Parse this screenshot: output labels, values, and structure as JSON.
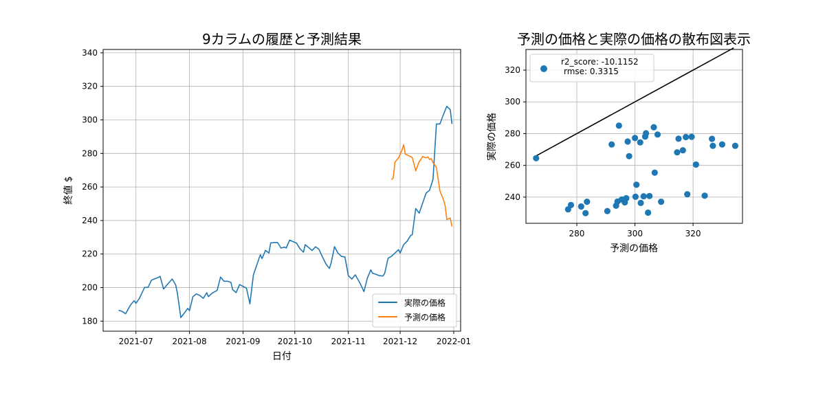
{
  "chart_data": [
    {
      "type": "line",
      "title": "9カラムの履歴と予測結果",
      "xlabel": "日付",
      "ylabel": "終値 $",
      "ylim": [
        174,
        342
      ],
      "xlim": [
        "2021-06-12",
        "2022-01-05"
      ],
      "grid": true,
      "legend_position": "lower-right",
      "x_ticks": [
        "2021-07",
        "2021-08",
        "2021-09",
        "2021-10",
        "2021-11",
        "2021-12",
        "2022-01"
      ],
      "x_tick_dates": [
        "2021-07-01",
        "2021-08-01",
        "2021-09-01",
        "2021-10-01",
        "2021-11-01",
        "2021-12-01",
        "2022-01-01"
      ],
      "y_ticks": [
        180,
        200,
        220,
        240,
        260,
        280,
        300,
        320,
        340
      ],
      "series": [
        {
          "name": "実際の価格",
          "color": "#1f77b4",
          "points": [
            [
              "2021-06-21",
              186.5
            ],
            [
              "2021-06-23",
              185.8
            ],
            [
              "2021-06-25",
              184.4
            ],
            [
              "2021-06-28",
              189.8
            ],
            [
              "2021-06-30",
              192.2
            ],
            [
              "2021-07-01",
              190.6
            ],
            [
              "2021-07-03",
              193.6
            ],
            [
              "2021-07-05",
              197.9
            ],
            [
              "2021-07-06",
              200.1
            ],
            [
              "2021-07-08",
              200.1
            ],
            [
              "2021-07-10",
              204.4
            ],
            [
              "2021-07-12",
              205.3
            ],
            [
              "2021-07-14",
              206.1
            ],
            [
              "2021-07-15",
              206.7
            ],
            [
              "2021-07-17",
              199.1
            ],
            [
              "2021-07-19",
              201.6
            ],
            [
              "2021-07-22",
              205.1
            ],
            [
              "2021-07-24",
              201.6
            ],
            [
              "2021-07-25",
              196.7
            ],
            [
              "2021-07-27",
              182.1
            ],
            [
              "2021-07-29",
              184.8
            ],
            [
              "2021-07-31",
              187.6
            ],
            [
              "2021-08-01",
              186.2
            ],
            [
              "2021-08-03",
              194.6
            ],
            [
              "2021-08-05",
              196.2
            ],
            [
              "2021-08-07",
              195.3
            ],
            [
              "2021-08-09",
              193.6
            ],
            [
              "2021-08-11",
              196.9
            ],
            [
              "2021-08-12",
              194.6
            ],
            [
              "2021-08-14",
              196.6
            ],
            [
              "2021-08-17",
              198.3
            ],
            [
              "2021-08-19",
              206.3
            ],
            [
              "2021-08-21",
              203.8
            ],
            [
              "2021-08-23",
              203.8
            ],
            [
              "2021-08-25",
              203.1
            ],
            [
              "2021-08-26",
              198.8
            ],
            [
              "2021-08-28",
              197.0
            ],
            [
              "2021-08-30",
              201.8
            ],
            [
              "2021-09-01",
              200.7
            ],
            [
              "2021-09-03",
              199.6
            ],
            [
              "2021-09-05",
              190.3
            ],
            [
              "2021-09-07",
              207.6
            ],
            [
              "2021-09-09",
              213.6
            ],
            [
              "2021-09-11",
              219.6
            ],
            [
              "2021-09-12",
              217.3
            ],
            [
              "2021-09-14",
              222.2
            ],
            [
              "2021-09-16",
              220.6
            ],
            [
              "2021-09-17",
              226.6
            ],
            [
              "2021-09-19",
              226.8
            ],
            [
              "2021-09-21",
              226.9
            ],
            [
              "2021-09-23",
              223.6
            ],
            [
              "2021-09-25",
              224.1
            ],
            [
              "2021-09-26",
              223.6
            ],
            [
              "2021-09-28",
              228.3
            ],
            [
              "2021-09-30",
              227.4
            ],
            [
              "2021-10-02",
              226.5
            ],
            [
              "2021-10-04",
              223.1
            ],
            [
              "2021-10-06",
              221.1
            ],
            [
              "2021-10-07",
              225.6
            ],
            [
              "2021-10-09",
              223.9
            ],
            [
              "2021-10-11",
              222.1
            ],
            [
              "2021-10-13",
              224.3
            ],
            [
              "2021-10-15",
              222.8
            ],
            [
              "2021-10-17",
              218.3
            ],
            [
              "2021-10-19",
              214.1
            ],
            [
              "2021-10-21",
              211.4
            ],
            [
              "2021-10-22",
              214.6
            ],
            [
              "2021-10-24",
              224.4
            ],
            [
              "2021-10-26",
              220.6
            ],
            [
              "2021-10-28",
              218.6
            ],
            [
              "2021-10-30",
              218.3
            ],
            [
              "2021-11-01",
              207.1
            ],
            [
              "2021-11-03",
              205.1
            ],
            [
              "2021-11-05",
              207.6
            ],
            [
              "2021-11-08",
              202.1
            ],
            [
              "2021-11-10",
              197.6
            ],
            [
              "2021-11-12",
              205.6
            ],
            [
              "2021-11-14",
              210.6
            ],
            [
              "2021-11-15",
              208.6
            ],
            [
              "2021-11-17",
              207.9
            ],
            [
              "2021-11-19",
              207.1
            ],
            [
              "2021-11-21",
              206.9
            ],
            [
              "2021-11-22",
              208.4
            ],
            [
              "2021-11-24",
              217.5
            ],
            [
              "2021-11-26",
              218.7
            ],
            [
              "2021-11-28",
              220.6
            ],
            [
              "2021-11-30",
              222.6
            ],
            [
              "2021-12-01",
              220.6
            ],
            [
              "2021-12-03",
              225.6
            ],
            [
              "2021-12-05",
              227.6
            ],
            [
              "2021-12-07",
              230.9
            ],
            [
              "2021-12-08",
              231.6
            ],
            [
              "2021-12-10",
              247.1
            ],
            [
              "2021-12-12",
              244.4
            ],
            [
              "2021-12-14",
              250.3
            ],
            [
              "2021-12-16",
              256.3
            ],
            [
              "2021-12-18",
              258.1
            ],
            [
              "2021-12-20",
              264.4
            ],
            [
              "2021-12-22",
              297.6
            ],
            [
              "2021-12-24",
              297.6
            ],
            [
              "2021-12-26",
              303.1
            ],
            [
              "2021-12-28",
              308.1
            ],
            [
              "2021-12-30",
              306.1
            ],
            [
              "2021-12-31",
              297.6
            ]
          ]
        },
        {
          "name": "予測の価格",
          "color": "#ff7f0e",
          "points": []
        }
      ]
    },
    {
      "type": "scatter",
      "title": "予測の価格と実際の価格の散布図表示",
      "xlabel": "予測の価格",
      "ylabel": "実際の価格",
      "xlim": [
        262.5,
        337.0
      ],
      "ylim": [
        223.5,
        333.0
      ],
      "x_ticks": [
        280,
        300,
        320
      ],
      "y_ticks": [
        240,
        260,
        280,
        300,
        320
      ],
      "grid": true,
      "legend_position": "top-left",
      "legend_text": [
        "r2_score: -10.1152",
        "rmse: 0.3315"
      ],
      "point_color": "#1f77b4",
      "line_color": "#000000",
      "reference_line": [
        [
          265.8,
          265.8
        ],
        [
          334.0,
          334.0
        ]
      ],
      "points": []
    }
  ]
}
